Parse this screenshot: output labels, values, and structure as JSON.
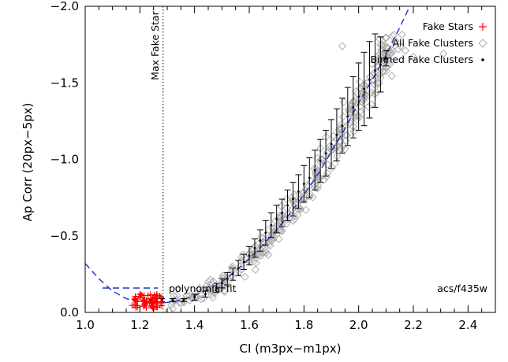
{
  "chart_data": {
    "type": "scatter",
    "xlabel": "CI (m3px−m1px)",
    "ylabel": "Ap Corr (20px−5px)",
    "xlim": [
      1.0,
      2.5
    ],
    "ylim": [
      -2.0,
      0.0
    ],
    "y_inverted": true,
    "x_ticks": [
      "1.0",
      "1.2",
      "1.4",
      "1.6",
      "1.8",
      "2.0",
      "2.2",
      "2.4"
    ],
    "y_ticks": [
      "0.0",
      "−0.5",
      "−1.0",
      "−1.5",
      "−2.0"
    ],
    "legend_position": "top-right",
    "legend": [
      {
        "label": "Fake Stars",
        "marker": "plus",
        "color": "#ff0000"
      },
      {
        "label": "All Fake Clusters",
        "marker": "diamond",
        "color": "#aaaaaa"
      },
      {
        "label": "Binned Fake Clusters",
        "marker": "dot",
        "color": "#000000"
      }
    ],
    "annotations": {
      "max_fake_star_label": "Max Fake Star",
      "max_fake_star_x": 1.285,
      "fit_label": "polynomial fit",
      "filter_label": "acs/f435w"
    },
    "fit_color": "#1a33cc",
    "fit_curve": {
      "x": [
        1.0,
        1.05,
        1.1,
        1.15,
        1.2,
        1.25,
        1.3,
        1.35,
        1.4,
        1.45,
        1.5,
        1.55,
        1.6,
        1.65,
        1.7,
        1.75,
        1.8,
        1.85,
        1.9,
        1.95,
        2.0,
        2.05,
        2.1,
        2.15,
        2.2
      ],
      "y": [
        -0.32,
        -0.22,
        -0.14,
        -0.09,
        -0.07,
        -0.06,
        -0.065,
        -0.08,
        -0.11,
        -0.15,
        -0.2,
        -0.27,
        -0.35,
        -0.44,
        -0.54,
        -0.65,
        -0.77,
        -0.9,
        -1.05,
        -1.2,
        -1.37,
        -1.52,
        -1.68,
        -1.86,
        -2.05
      ]
    },
    "fake_stars": {
      "x_range": [
        1.17,
        1.28
      ],
      "y_range": [
        -0.03,
        -0.12
      ],
      "count": 70
    },
    "binned": {
      "x": [
        1.24,
        1.26,
        1.28,
        1.32,
        1.36,
        1.4,
        1.44,
        1.48,
        1.5,
        1.52,
        1.54,
        1.56,
        1.58,
        1.6,
        1.62,
        1.64,
        1.66,
        1.68,
        1.7,
        1.72,
        1.74,
        1.76,
        1.78,
        1.8,
        1.82,
        1.84,
        1.86,
        1.88,
        1.9,
        1.92,
        1.94,
        1.96,
        1.98,
        2.0,
        2.02,
        2.04,
        2.06,
        2.08,
        2.1
      ],
      "y": [
        -0.08,
        -0.08,
        -0.08,
        -0.08,
        -0.08,
        -0.1,
        -0.12,
        -0.16,
        -0.19,
        -0.22,
        -0.25,
        -0.29,
        -0.33,
        -0.37,
        -0.42,
        -0.47,
        -0.52,
        -0.57,
        -0.61,
        -0.65,
        -0.7,
        -0.74,
        -0.79,
        -0.84,
        -0.88,
        -0.93,
        -0.99,
        -1.04,
        -1.1,
        -1.16,
        -1.22,
        -1.28,
        -1.34,
        -1.41,
        -1.46,
        -1.52,
        -1.58,
        -1.62,
        -1.66
      ],
      "err": [
        0.01,
        0.01,
        0.01,
        0.01,
        0.01,
        0.02,
        0.02,
        0.03,
        0.03,
        0.04,
        0.04,
        0.05,
        0.05,
        0.06,
        0.06,
        0.07,
        0.08,
        0.08,
        0.09,
        0.09,
        0.1,
        0.11,
        0.11,
        0.12,
        0.13,
        0.13,
        0.14,
        0.15,
        0.16,
        0.17,
        0.18,
        0.19,
        0.2,
        0.22,
        0.24,
        0.25,
        0.24,
        0.18,
        0.05
      ]
    },
    "clusters_scatter": {
      "x_range": [
        1.3,
        2.32
      ],
      "sigma_y": [
        0.02,
        0.09
      ],
      "count": 420,
      "outliers": [
        {
          "x": 2.31,
          "y": -1.69
        },
        {
          "x": 2.2,
          "y": -1.67
        },
        {
          "x": 1.94,
          "y": -1.74
        }
      ]
    }
  }
}
